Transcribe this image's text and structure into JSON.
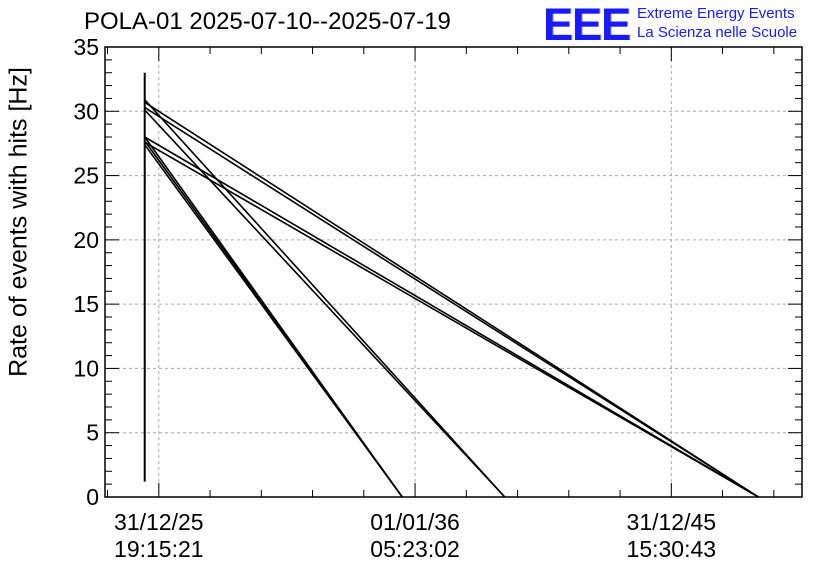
{
  "header": {
    "title": "POLA-01 2025-07-10--2025-07-19",
    "logo_text": "EEE",
    "brand_line1": "Extreme Energy Events",
    "brand_line2": "La Scienza nelle Scuole",
    "brand_color": "#1a1aff"
  },
  "chart_data": {
    "type": "line",
    "title": "POLA-01 2025-07-10--2025-07-19",
    "xlabel": "",
    "ylabel": "Rate of events with hits [Hz]",
    "ylim": [
      0,
      35
    ],
    "yticks": [
      0,
      5,
      10,
      15,
      20,
      25,
      30,
      35
    ],
    "xticks": [
      {
        "x": 0.1,
        "label_date": "31/12/25",
        "label_time": "19:15:21"
      },
      {
        "x": 10.1,
        "label_date": "01/01/36",
        "label_time": "05:23:02"
      },
      {
        "x": 20.1,
        "label_date": "31/12/45",
        "label_time": "15:30:43"
      }
    ],
    "xlim": [
      -2,
      25.2
    ],
    "x_units": "years since 31/12/25 19:15:21 (axis positions)",
    "grid": true,
    "line_color": "#000000",
    "vertical_burst": {
      "x": -0.45,
      "y_min": 1.2,
      "y_max": 33
    },
    "series": [
      {
        "points": [
          [
            -0.45,
            30.7
          ],
          [
            23.5,
            0
          ]
        ]
      },
      {
        "points": [
          [
            -0.45,
            30.3
          ],
          [
            23.5,
            0
          ]
        ]
      },
      {
        "points": [
          [
            -0.45,
            30.9
          ],
          [
            13.6,
            0
          ]
        ]
      },
      {
        "points": [
          [
            -0.45,
            30.1
          ],
          [
            13.6,
            0
          ]
        ]
      },
      {
        "points": [
          [
            -0.45,
            28.0
          ],
          [
            23.5,
            0
          ]
        ]
      },
      {
        "points": [
          [
            -0.45,
            27.6
          ],
          [
            23.5,
            0
          ]
        ]
      },
      {
        "points": [
          [
            -0.45,
            28.0
          ],
          [
            9.6,
            0
          ]
        ]
      },
      {
        "points": [
          [
            -0.45,
            27.7
          ],
          [
            9.6,
            0
          ]
        ]
      },
      {
        "points": [
          [
            -0.45,
            27.4
          ],
          [
            9.6,
            0
          ]
        ]
      }
    ]
  }
}
